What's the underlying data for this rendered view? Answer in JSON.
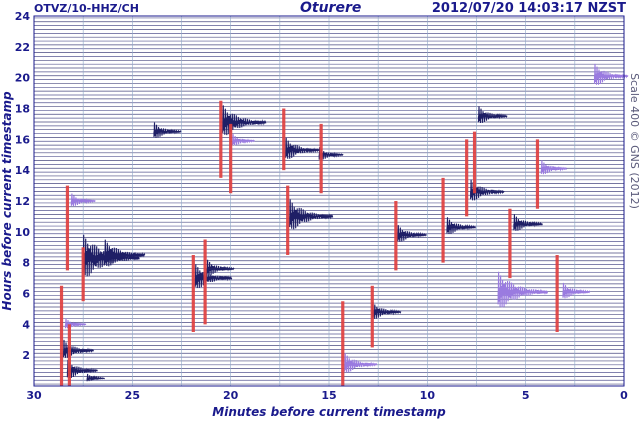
{
  "header": {
    "station": "OTVZ/10-HHZ/CH",
    "location": "Oturere",
    "timestamp": "2012/07/20 14:03:17 NZST"
  },
  "side_note": "Scale 400  ©  GNS (2012)",
  "chart_data": {
    "type": "heatmap",
    "title": "Oturere",
    "xlabel": "Minutes before current timestamp",
    "ylabel": "Hours before current timestamp",
    "xlim": [
      30,
      0
    ],
    "ylim": [
      0,
      24
    ],
    "x_ticks": [
      "30",
      "25",
      "20",
      "15",
      "10",
      "5",
      "0"
    ],
    "y_ticks": [
      "2",
      "4",
      "6",
      "8",
      "10",
      "12",
      "14",
      "16",
      "18",
      "20",
      "22",
      "24"
    ],
    "trace_rows": 96,
    "events": [
      {
        "minutes": 28.3,
        "hour": 1.0,
        "amp": 1.4,
        "color": "#1f1f66"
      },
      {
        "minutes": 27.3,
        "hour": 0.5,
        "amp": 0.6,
        "color": "#1f1f66"
      },
      {
        "minutes": 28.5,
        "hour": 2.3,
        "amp": 1.4,
        "color": "#1f1f66"
      },
      {
        "minutes": 28.4,
        "hour": 4.0,
        "amp": 0.8,
        "color": "#9a7be0"
      },
      {
        "minutes": 27.5,
        "hour": 8.3,
        "amp": 3.0,
        "color": "#1f1f66"
      },
      {
        "minutes": 26.4,
        "hour": 8.5,
        "amp": 2.0,
        "color": "#1f1f66"
      },
      {
        "minutes": 28.1,
        "hour": 12.0,
        "amp": 1.0,
        "color": "#9a7be0"
      },
      {
        "minutes": 23.9,
        "hour": 16.5,
        "amp": 1.2,
        "color": "#1f1f66"
      },
      {
        "minutes": 21.8,
        "hour": 7.0,
        "amp": 1.8,
        "color": "#1f1f66"
      },
      {
        "minutes": 21.2,
        "hour": 7.6,
        "amp": 1.2,
        "color": "#1f1f66"
      },
      {
        "minutes": 20.4,
        "hour": 17.1,
        "amp": 2.2,
        "color": "#1f1f66"
      },
      {
        "minutes": 19.9,
        "hour": 15.9,
        "amp": 0.9,
        "color": "#9a7be0"
      },
      {
        "minutes": 17.2,
        "hour": 15.3,
        "amp": 1.6,
        "color": "#1f1f66"
      },
      {
        "minutes": 17.0,
        "hour": 11.0,
        "amp": 2.2,
        "color": "#1f1f66"
      },
      {
        "minutes": 15.5,
        "hour": 15.0,
        "amp": 1.0,
        "color": "#1f1f66"
      },
      {
        "minutes": 14.2,
        "hour": 1.4,
        "amp": 1.5,
        "color": "#9a7be0"
      },
      {
        "minutes": 12.8,
        "hour": 4.8,
        "amp": 1.3,
        "color": "#1f1f66"
      },
      {
        "minutes": 11.5,
        "hour": 9.8,
        "amp": 1.3,
        "color": "#1f1f66"
      },
      {
        "minutes": 9.0,
        "hour": 10.3,
        "amp": 1.3,
        "color": "#1f1f66"
      },
      {
        "minutes": 7.8,
        "hour": 12.6,
        "amp": 1.6,
        "color": "#1f1f66"
      },
      {
        "minutes": 7.4,
        "hour": 17.5,
        "amp": 1.3,
        "color": "#1f1f66"
      },
      {
        "minutes": 6.4,
        "hour": 6.1,
        "amp": 2.6,
        "color": "#9a7be0"
      },
      {
        "minutes": 5.6,
        "hour": 10.5,
        "amp": 1.3,
        "color": "#1f1f66"
      },
      {
        "minutes": 4.2,
        "hour": 14.1,
        "amp": 1.1,
        "color": "#9a7be0"
      },
      {
        "minutes": 3.1,
        "hour": 6.1,
        "amp": 1.2,
        "color": "#9a7be0"
      },
      {
        "minutes": 1.5,
        "hour": 20.1,
        "amp": 1.6,
        "color": "#9a7be0"
      }
    ],
    "markers": [
      {
        "minutes": 28.3,
        "hour_top": 13.0,
        "hour_bottom": 7.5
      },
      {
        "minutes": 28.6,
        "hour_top": 6.5,
        "hour_bottom": 0.0
      },
      {
        "minutes": 28.2,
        "hour_top": 4.0,
        "hour_bottom": 0.0
      },
      {
        "minutes": 27.5,
        "hour_top": 9.0,
        "hour_bottom": 5.5
      },
      {
        "minutes": 21.9,
        "hour_top": 8.5,
        "hour_bottom": 3.5
      },
      {
        "minutes": 21.3,
        "hour_top": 9.5,
        "hour_bottom": 4.0
      },
      {
        "minutes": 20.5,
        "hour_top": 18.5,
        "hour_bottom": 13.5
      },
      {
        "minutes": 20.0,
        "hour_top": 17.0,
        "hour_bottom": 12.5
      },
      {
        "minutes": 17.3,
        "hour_top": 18.0,
        "hour_bottom": 14.0
      },
      {
        "minutes": 17.1,
        "hour_top": 13.0,
        "hour_bottom": 8.5
      },
      {
        "minutes": 15.4,
        "hour_top": 17.0,
        "hour_bottom": 12.5
      },
      {
        "minutes": 14.3,
        "hour_top": 5.5,
        "hour_bottom": 0.0
      },
      {
        "minutes": 12.8,
        "hour_top": 6.5,
        "hour_bottom": 2.5
      },
      {
        "minutes": 11.6,
        "hour_top": 12.0,
        "hour_bottom": 7.5
      },
      {
        "minutes": 9.2,
        "hour_top": 13.5,
        "hour_bottom": 8.0
      },
      {
        "minutes": 8.0,
        "hour_top": 16.0,
        "hour_bottom": 11.0
      },
      {
        "minutes": 7.6,
        "hour_top": 16.5,
        "hour_bottom": 12.5
      },
      {
        "minutes": 5.8,
        "hour_top": 11.5,
        "hour_bottom": 7.0
      },
      {
        "minutes": 4.4,
        "hour_top": 16.0,
        "hour_bottom": 11.5
      },
      {
        "minutes": 3.4,
        "hour_top": 8.5,
        "hour_bottom": 3.5
      }
    ],
    "marker_color": "#e04040"
  }
}
